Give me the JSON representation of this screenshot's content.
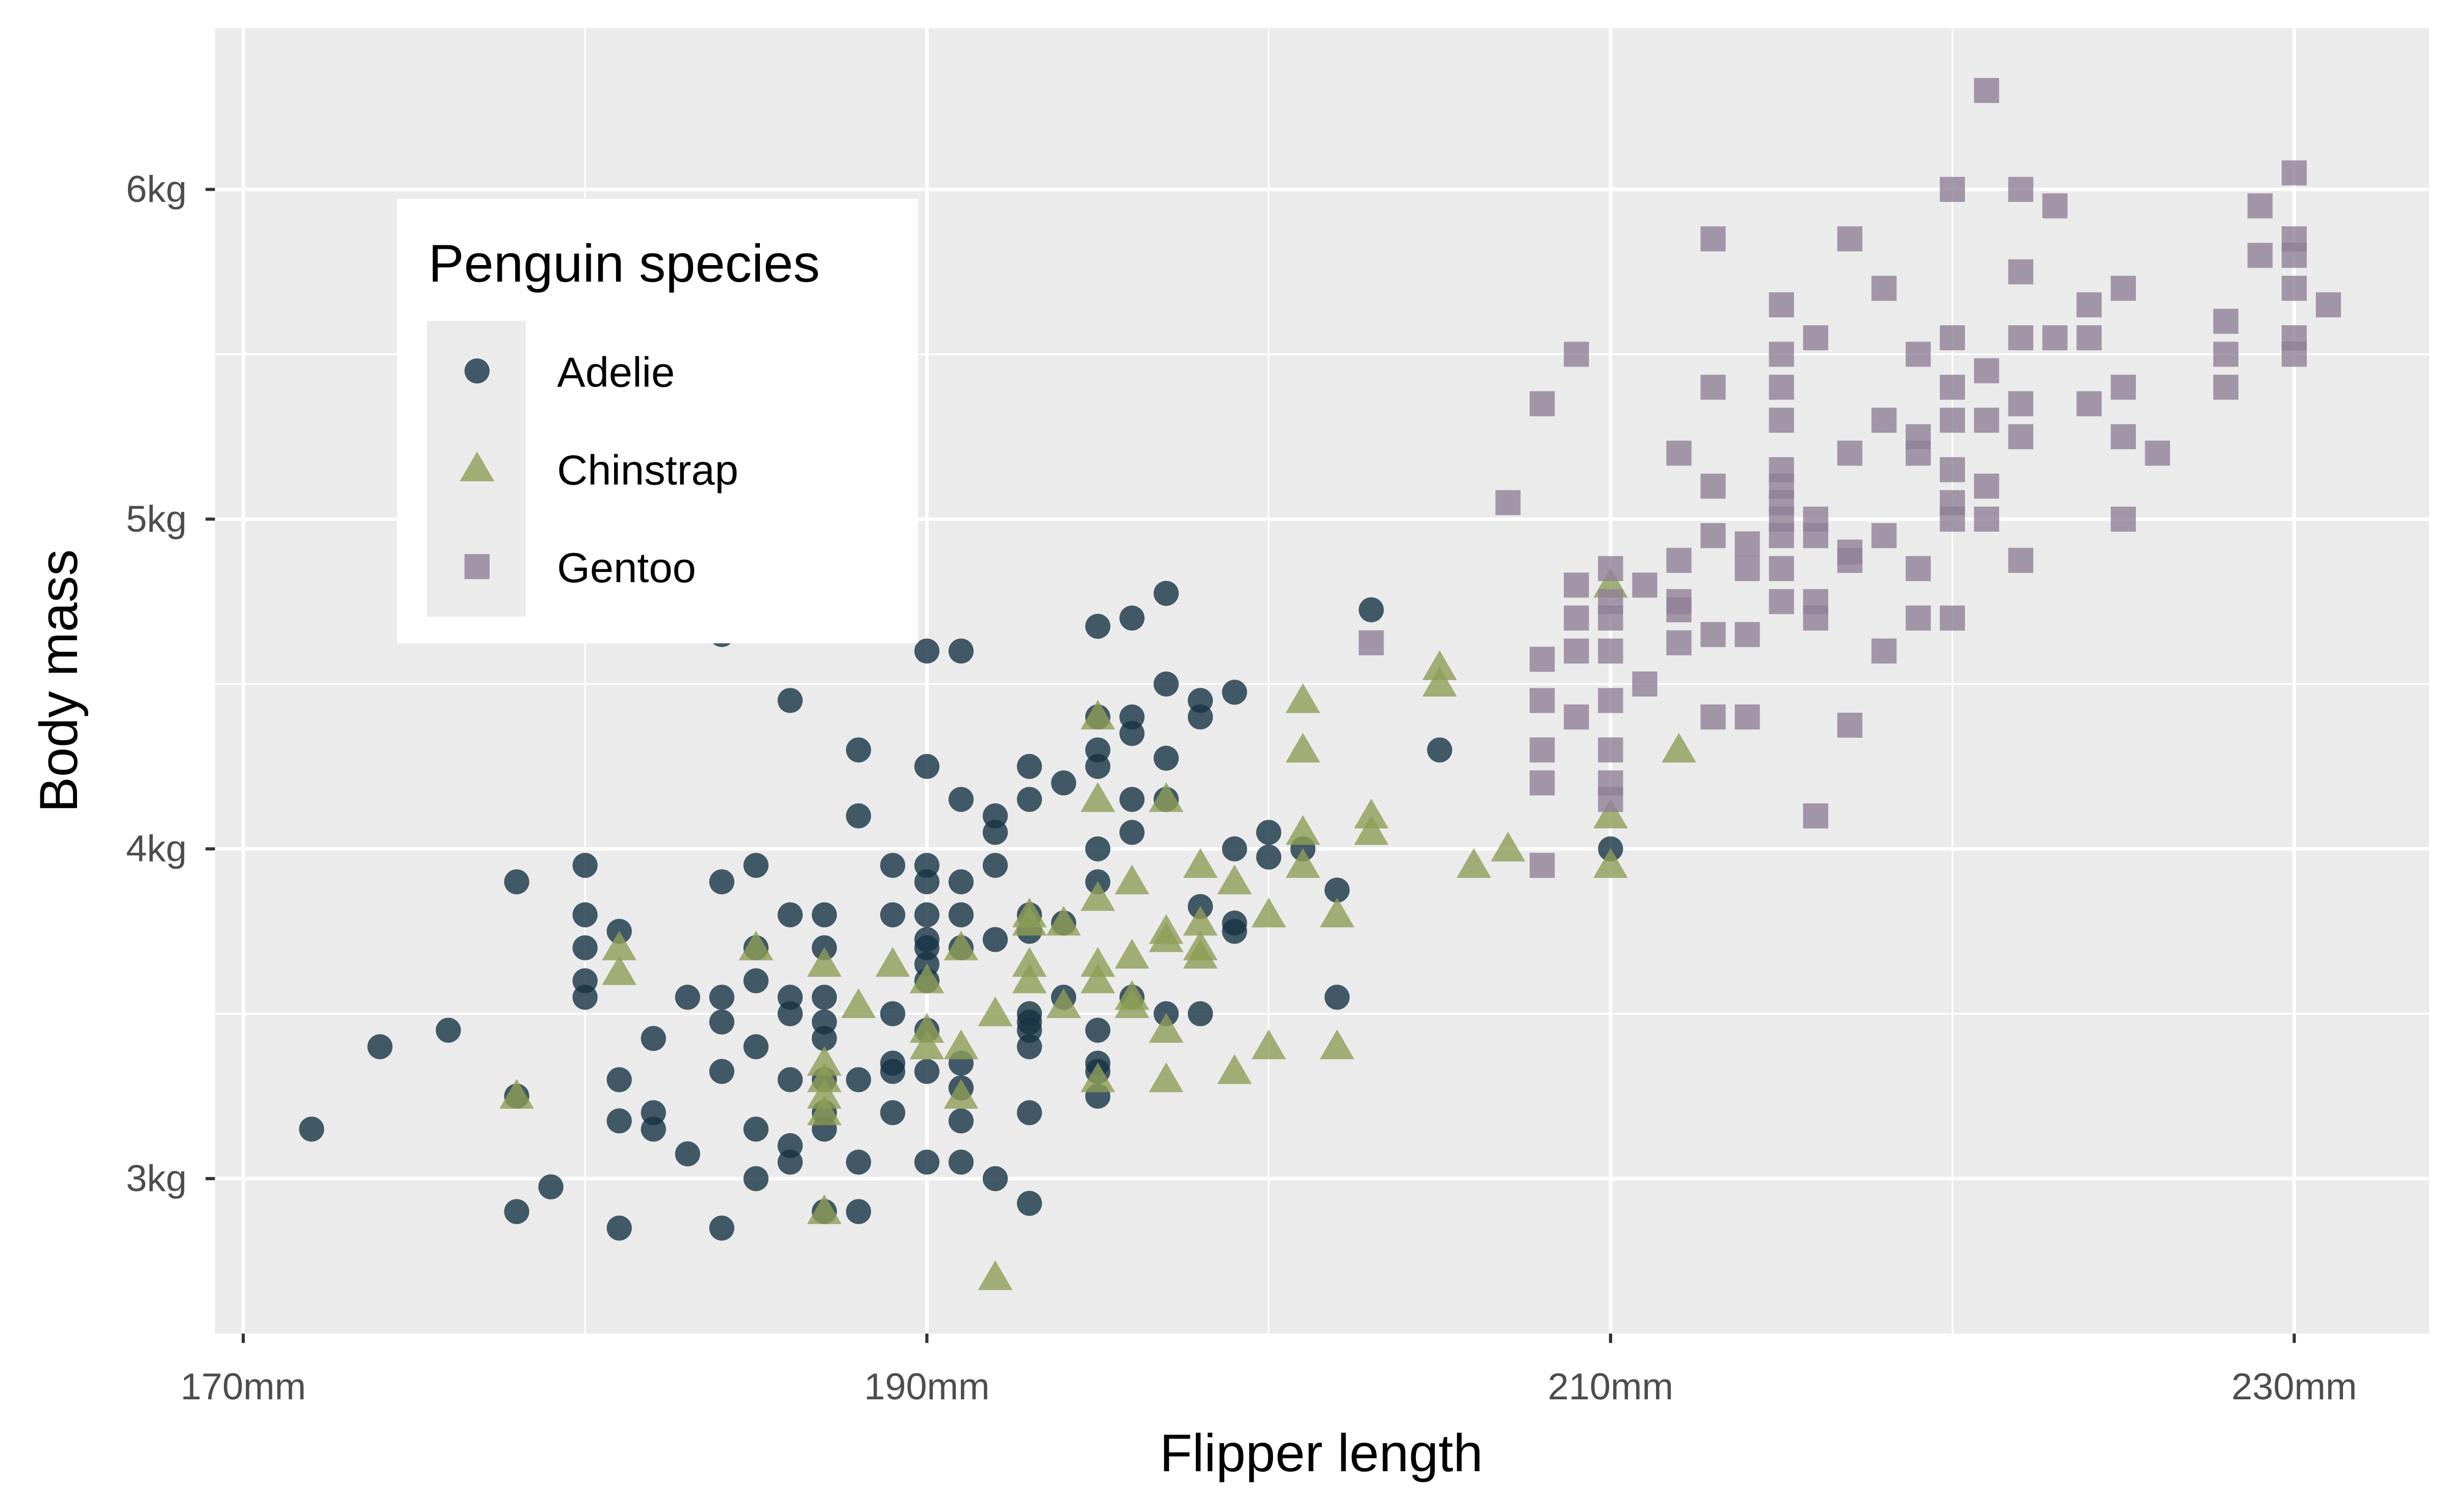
{
  "chart_data": {
    "type": "scatter",
    "title": "",
    "xlabel": "Flipper length",
    "ylabel": "Body mass",
    "xlim": [
      170,
      233.5
    ],
    "ylim": [
      2.55,
      6.5
    ],
    "x_ticks": [
      {
        "value": 170,
        "label": "170mm"
      },
      {
        "value": 190,
        "label": "190mm"
      },
      {
        "value": 210,
        "label": "210mm"
      },
      {
        "value": 230,
        "label": "230mm"
      }
    ],
    "y_ticks": [
      {
        "value": 3,
        "label": "3kg"
      },
      {
        "value": 4,
        "label": "4kg"
      },
      {
        "value": 5,
        "label": "5kg"
      },
      {
        "value": 6,
        "label": "6kg"
      }
    ],
    "grid": true,
    "legend": {
      "title": "Penguin species",
      "placement": "top-left"
    },
    "series": [
      {
        "name": "Adelie",
        "shape": "circle",
        "color": "#163345",
        "points": [
          [
            172,
            3.15
          ],
          [
            174,
            3.4
          ],
          [
            176,
            3.45
          ],
          [
            178,
            3.9
          ],
          [
            178,
            3.25
          ],
          [
            178,
            2.9
          ],
          [
            179,
            2.975
          ],
          [
            180,
            3.95
          ],
          [
            180,
            3.8
          ],
          [
            180,
            3.7
          ],
          [
            180,
            3.6
          ],
          [
            180,
            3.55
          ],
          [
            181,
            3.75
          ],
          [
            181,
            3.3
          ],
          [
            181,
            3.175
          ],
          [
            181,
            2.85
          ],
          [
            182,
            3.2
          ],
          [
            182,
            3.15
          ],
          [
            182,
            3.425
          ],
          [
            183,
            3.075
          ],
          [
            183,
            3.55
          ],
          [
            184,
            3.9
          ],
          [
            184,
            3.55
          ],
          [
            184,
            3.475
          ],
          [
            184,
            3.325
          ],
          [
            184,
            2.85
          ],
          [
            184,
            4.65
          ],
          [
            185,
            3.95
          ],
          [
            185,
            3.7
          ],
          [
            185,
            3.6
          ],
          [
            185,
            3.4
          ],
          [
            185,
            3.15
          ],
          [
            185,
            3.0
          ],
          [
            186,
            4.45
          ],
          [
            186,
            3.8
          ],
          [
            186,
            3.55
          ],
          [
            186,
            3.5
          ],
          [
            186,
            3.3
          ],
          [
            186,
            3.1
          ],
          [
            186,
            3.05
          ],
          [
            187,
            3.8
          ],
          [
            187,
            3.7
          ],
          [
            187,
            3.55
          ],
          [
            187,
            3.475
          ],
          [
            187,
            3.425
          ],
          [
            187,
            3.3
          ],
          [
            187,
            3.2
          ],
          [
            187,
            3.15
          ],
          [
            187,
            2.9
          ],
          [
            188,
            4.3
          ],
          [
            188,
            4.1
          ],
          [
            188,
            3.3
          ],
          [
            188,
            3.05
          ],
          [
            188,
            2.9
          ],
          [
            189,
            3.95
          ],
          [
            189,
            3.8
          ],
          [
            189,
            3.5
          ],
          [
            189,
            3.35
          ],
          [
            189,
            3.325
          ],
          [
            189,
            3.2
          ],
          [
            190,
            4.6
          ],
          [
            190,
            4.25
          ],
          [
            190,
            3.95
          ],
          [
            190,
            3.9
          ],
          [
            190,
            3.8
          ],
          [
            190,
            3.725
          ],
          [
            190,
            3.7
          ],
          [
            190,
            3.65
          ],
          [
            190,
            3.6
          ],
          [
            190,
            3.45
          ],
          [
            190,
            3.325
          ],
          [
            190,
            3.05
          ],
          [
            191,
            4.6
          ],
          [
            191,
            4.15
          ],
          [
            191,
            3.9
          ],
          [
            191,
            3.8
          ],
          [
            191,
            3.7
          ],
          [
            191,
            3.35
          ],
          [
            191,
            3.275
          ],
          [
            191,
            3.175
          ],
          [
            191,
            3.05
          ],
          [
            192,
            4.1
          ],
          [
            192,
            4.05
          ],
          [
            192,
            3.95
          ],
          [
            192,
            3.725
          ],
          [
            192,
            3.0
          ],
          [
            193,
            4.25
          ],
          [
            193,
            4.15
          ],
          [
            193,
            3.8
          ],
          [
            193,
            3.75
          ],
          [
            193,
            3.5
          ],
          [
            193,
            3.475
          ],
          [
            193,
            3.45
          ],
          [
            193,
            3.4
          ],
          [
            193,
            3.2
          ],
          [
            193,
            2.925
          ],
          [
            194,
            4.2
          ],
          [
            194,
            3.775
          ],
          [
            194,
            3.55
          ],
          [
            195,
            4.675
          ],
          [
            195,
            4.4
          ],
          [
            195,
            4.3
          ],
          [
            195,
            4.25
          ],
          [
            195,
            4.0
          ],
          [
            195,
            3.9
          ],
          [
            195,
            3.45
          ],
          [
            195,
            3.35
          ],
          [
            195,
            3.325
          ],
          [
            195,
            3.25
          ],
          [
            196,
            4.7
          ],
          [
            196,
            4.4
          ],
          [
            196,
            4.35
          ],
          [
            196,
            4.15
          ],
          [
            196,
            4.05
          ],
          [
            196,
            3.55
          ],
          [
            197,
            4.775
          ],
          [
            197,
            4.5
          ],
          [
            197,
            4.275
          ],
          [
            197,
            4.15
          ],
          [
            197,
            3.5
          ],
          [
            198,
            4.45
          ],
          [
            198,
            4.4
          ],
          [
            198,
            3.825
          ],
          [
            198,
            3.5
          ],
          [
            199,
            4.475
          ],
          [
            199,
            4.0
          ],
          [
            199,
            3.775
          ],
          [
            199,
            3.75
          ],
          [
            200,
            4.05
          ],
          [
            200,
            3.975
          ],
          [
            201,
            4.0
          ],
          [
            202,
            3.875
          ],
          [
            202,
            3.55
          ],
          [
            203,
            4.725
          ],
          [
            205,
            4.3
          ],
          [
            210,
            4.0
          ]
        ]
      },
      {
        "name": "Chinstrap",
        "shape": "triangle",
        "color": "#8d9e56",
        "points": [
          [
            178,
            3.25
          ],
          [
            181,
            3.7
          ],
          [
            181,
            3.625
          ],
          [
            185,
            3.7
          ],
          [
            187,
            3.65
          ],
          [
            187,
            3.35
          ],
          [
            187,
            3.3
          ],
          [
            187,
            3.25
          ],
          [
            187,
            3.2
          ],
          [
            187,
            2.9
          ],
          [
            188,
            3.525
          ],
          [
            189,
            3.65
          ],
          [
            190,
            3.6
          ],
          [
            190,
            3.45
          ],
          [
            190,
            3.4
          ],
          [
            191,
            3.7
          ],
          [
            191,
            3.4
          ],
          [
            191,
            3.25
          ],
          [
            192,
            3.5
          ],
          [
            192,
            2.7
          ],
          [
            193,
            3.8
          ],
          [
            193,
            3.775
          ],
          [
            193,
            3.65
          ],
          [
            193,
            3.6
          ],
          [
            194,
            3.775
          ],
          [
            194,
            3.525
          ],
          [
            195,
            4.4
          ],
          [
            195,
            4.15
          ],
          [
            195,
            3.85
          ],
          [
            195,
            3.65
          ],
          [
            195,
            3.6
          ],
          [
            195,
            3.3
          ],
          [
            196,
            3.9
          ],
          [
            196,
            3.675
          ],
          [
            196,
            3.55
          ],
          [
            196,
            3.525
          ],
          [
            197,
            4.15
          ],
          [
            197,
            3.75
          ],
          [
            197,
            3.725
          ],
          [
            197,
            3.45
          ],
          [
            197,
            3.3
          ],
          [
            198,
            3.95
          ],
          [
            198,
            3.775
          ],
          [
            198,
            3.7
          ],
          [
            198,
            3.675
          ],
          [
            199,
            3.9
          ],
          [
            199,
            3.325
          ],
          [
            200,
            3.8
          ],
          [
            200,
            3.4
          ],
          [
            201,
            4.45
          ],
          [
            201,
            4.3
          ],
          [
            201,
            4.05
          ],
          [
            201,
            3.95
          ],
          [
            202,
            3.8
          ],
          [
            202,
            3.4
          ],
          [
            203,
            4.1
          ],
          [
            203,
            4.05
          ],
          [
            205,
            4.55
          ],
          [
            205,
            4.5
          ],
          [
            206,
            3.95
          ],
          [
            207,
            4.0
          ],
          [
            210,
            4.8
          ],
          [
            210,
            4.1
          ],
          [
            210,
            3.95
          ],
          [
            212,
            4.3
          ]
        ]
      },
      {
        "name": "Gentoo",
        "shape": "square",
        "color": "#908097",
        "points": [
          [
            203,
            4.625
          ],
          [
            207,
            5.05
          ],
          [
            208,
            5.35
          ],
          [
            208,
            4.575
          ],
          [
            208,
            4.45
          ],
          [
            208,
            4.3
          ],
          [
            208,
            4.2
          ],
          [
            208,
            3.95
          ],
          [
            209,
            5.5
          ],
          [
            209,
            4.8
          ],
          [
            209,
            4.7
          ],
          [
            209,
            4.6
          ],
          [
            209,
            4.4
          ],
          [
            210,
            4.85
          ],
          [
            210,
            4.75
          ],
          [
            210,
            4.7
          ],
          [
            210,
            4.6
          ],
          [
            210,
            4.45
          ],
          [
            210,
            4.3
          ],
          [
            210,
            4.2
          ],
          [
            210,
            4.15
          ],
          [
            211,
            4.8
          ],
          [
            211,
            4.5
          ],
          [
            212,
            5.2
          ],
          [
            212,
            4.875
          ],
          [
            212,
            4.75
          ],
          [
            212,
            4.725
          ],
          [
            212,
            4.625
          ],
          [
            213,
            5.85
          ],
          [
            213,
            5.4
          ],
          [
            213,
            5.1
          ],
          [
            213,
            4.95
          ],
          [
            213,
            4.65
          ],
          [
            213,
            4.4
          ],
          [
            214,
            4.925
          ],
          [
            214,
            4.85
          ],
          [
            214,
            4.65
          ],
          [
            214,
            4.4
          ],
          [
            215,
            5.65
          ],
          [
            215,
            5.5
          ],
          [
            215,
            5.4
          ],
          [
            215,
            5.3
          ],
          [
            215,
            5.15
          ],
          [
            215,
            5.1
          ],
          [
            215,
            5.05
          ],
          [
            215,
            5.0
          ],
          [
            215,
            4.95
          ],
          [
            215,
            4.85
          ],
          [
            215,
            4.75
          ],
          [
            216,
            5.55
          ],
          [
            216,
            5.0
          ],
          [
            216,
            4.95
          ],
          [
            216,
            4.75
          ],
          [
            216,
            4.7
          ],
          [
            216,
            4.1
          ],
          [
            217,
            5.85
          ],
          [
            217,
            5.2
          ],
          [
            217,
            4.9
          ],
          [
            217,
            4.875
          ],
          [
            217,
            4.375
          ],
          [
            218,
            5.7
          ],
          [
            218,
            5.3
          ],
          [
            218,
            4.95
          ],
          [
            218,
            4.6
          ],
          [
            219,
            5.5
          ],
          [
            219,
            5.25
          ],
          [
            219,
            5.2
          ],
          [
            219,
            4.85
          ],
          [
            219,
            4.7
          ],
          [
            220,
            6.0
          ],
          [
            220,
            5.55
          ],
          [
            220,
            5.4
          ],
          [
            220,
            5.3
          ],
          [
            220,
            5.15
          ],
          [
            220,
            5.05
          ],
          [
            220,
            5.0
          ],
          [
            220,
            4.7
          ],
          [
            221,
            6.3
          ],
          [
            221,
            5.45
          ],
          [
            221,
            5.3
          ],
          [
            221,
            5.1
          ],
          [
            221,
            5.0
          ],
          [
            222,
            6.0
          ],
          [
            222,
            5.75
          ],
          [
            222,
            5.55
          ],
          [
            222,
            5.35
          ],
          [
            222,
            5.25
          ],
          [
            222,
            4.875
          ],
          [
            223,
            5.95
          ],
          [
            223,
            5.55
          ],
          [
            224,
            5.65
          ],
          [
            224,
            5.55
          ],
          [
            224,
            5.35
          ],
          [
            225,
            5.7
          ],
          [
            225,
            5.4
          ],
          [
            225,
            5.25
          ],
          [
            225,
            5.0
          ],
          [
            226,
            5.2
          ],
          [
            228,
            5.6
          ],
          [
            228,
            5.5
          ],
          [
            228,
            5.4
          ],
          [
            229,
            5.95
          ],
          [
            229,
            5.8
          ],
          [
            230,
            6.05
          ],
          [
            230,
            5.85
          ],
          [
            230,
            5.8
          ],
          [
            230,
            5.7
          ],
          [
            230,
            5.55
          ],
          [
            230,
            5.5
          ],
          [
            231,
            5.65
          ]
        ]
      }
    ]
  }
}
